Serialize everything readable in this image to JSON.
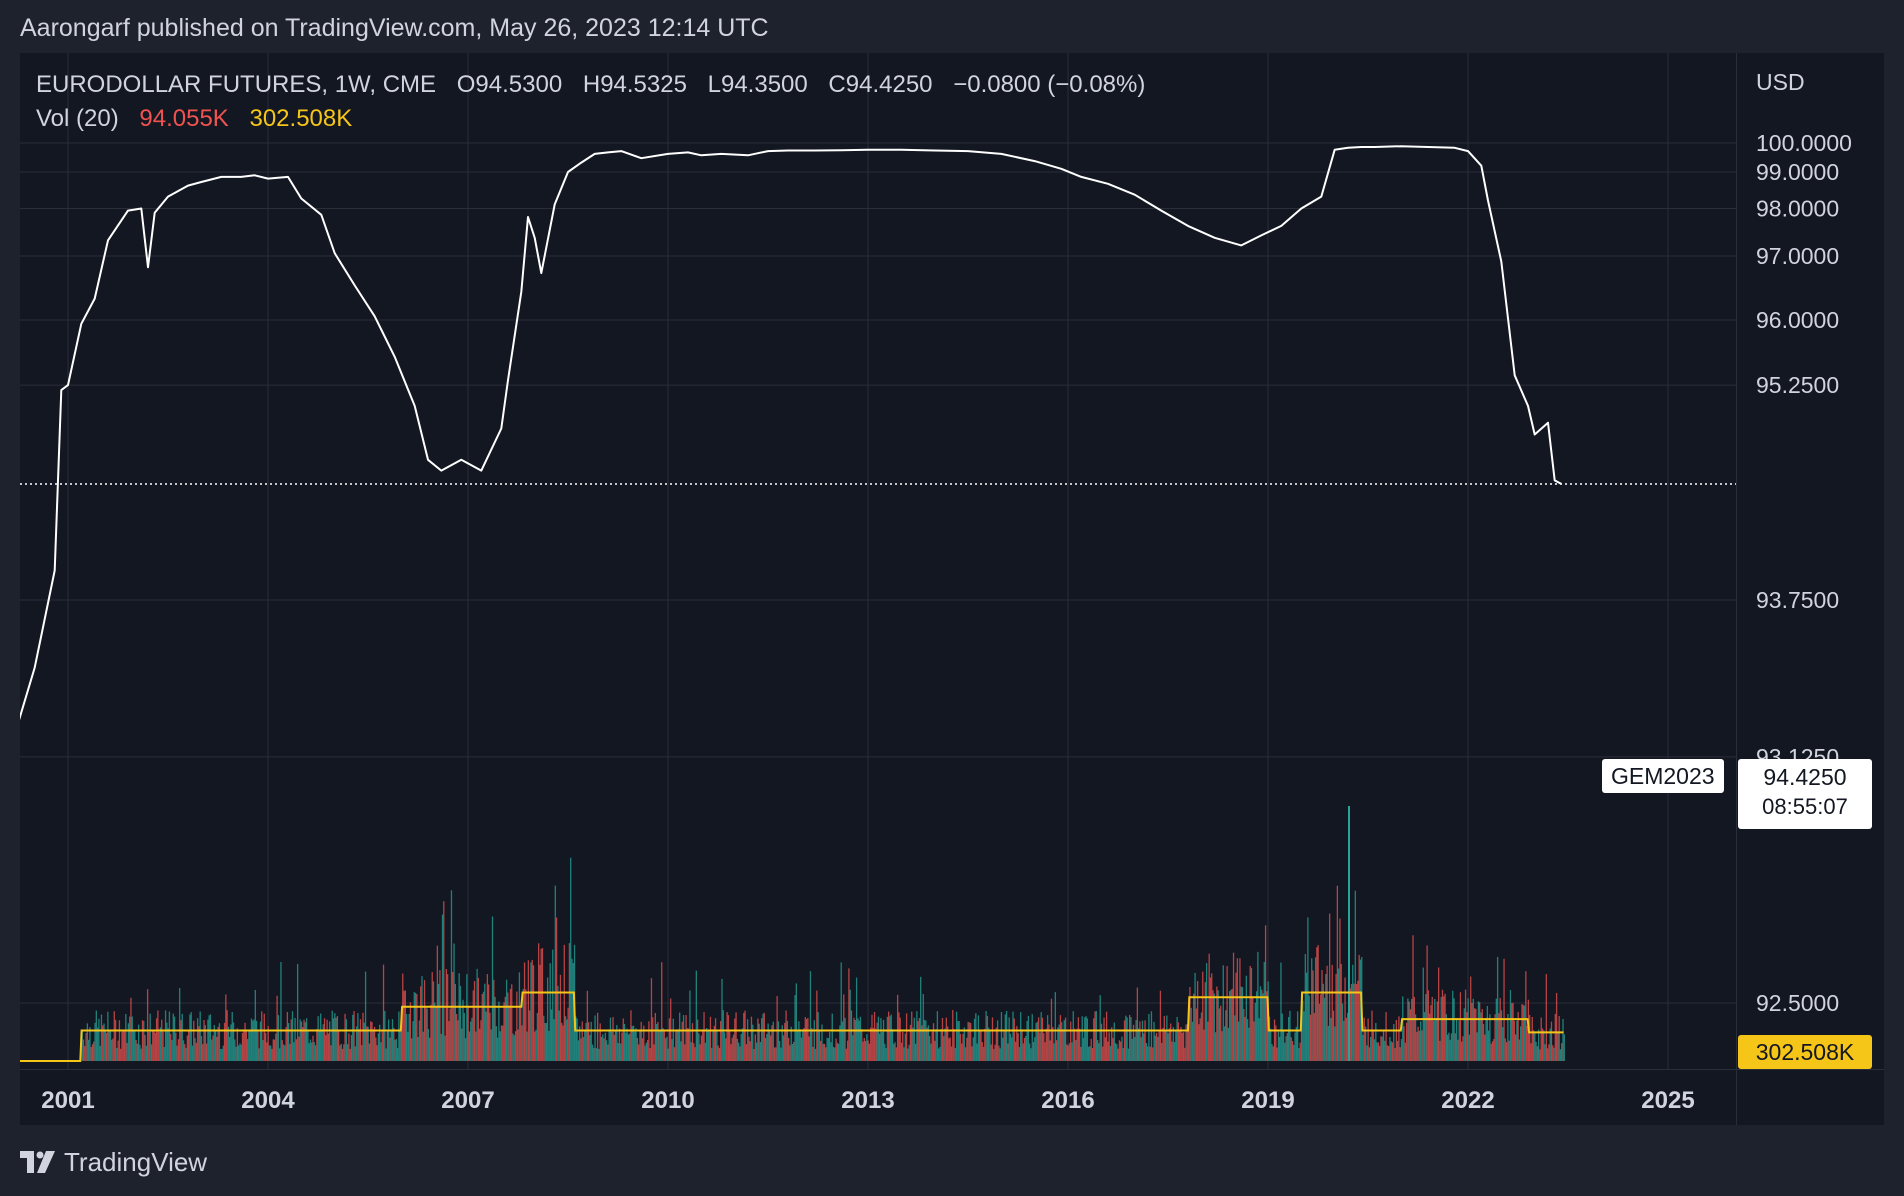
{
  "publisher_line": "Aarongarf published on TradingView.com, May 26, 2023 12:14 UTC",
  "legend": {
    "symbol": "EURODOLLAR FUTURES, 1W, CME",
    "open_label": "O",
    "open": "94.5300",
    "high_label": "H",
    "high": "94.5325",
    "low_label": "L",
    "low": "94.3500",
    "close_label": "C",
    "close": "94.4250",
    "change": "−0.0800 (−0.08%)",
    "vol_label": "Vol (20)",
    "vol_value": "94.055K",
    "vol_ma_value": "302.508K"
  },
  "currency": "USD",
  "symbol_badge": "GEM2023",
  "last_price": "94.4250",
  "countdown": "08:55:07",
  "footer_brand": "TradingView",
  "colors": {
    "background": "#131722",
    "page": "#1e222d",
    "price_line": "#ffffff",
    "vol_up": "#26a69a",
    "vol_down": "#ef5350",
    "vol_ma": "#f5c518",
    "grid": "#2a2e39"
  },
  "chart_data": {
    "type": "line",
    "x_unit": "year",
    "x_ticks": [
      "2001",
      "2004",
      "2007",
      "2010",
      "2013",
      "2016",
      "2019",
      "2022",
      "2025"
    ],
    "y_ticks": [
      "100.0000",
      "99.0000",
      "98.0000",
      "97.0000",
      "96.0000",
      "95.2500",
      "93.7500",
      "93.1250",
      "92.5000"
    ],
    "y_scale": "non-linear (reciprocal)",
    "grid": true,
    "series": [
      {
        "x": [
          2000.0,
          2000.2,
          2000.5,
          2000.8,
          2000.9,
          2001.0,
          2001.2,
          2001.4,
          2001.6,
          2001.9,
          2002.1,
          2002.2,
          2002.3,
          2002.5,
          2002.8,
          2003.0,
          2003.3,
          2003.6,
          2003.8,
          2004.0,
          2004.3,
          2004.5,
          2004.8,
          2005.0,
          2005.3,
          2005.6,
          2005.9,
          2006.2,
          2006.4,
          2006.6,
          2006.9,
          2007.2,
          2007.5,
          2007.6,
          2007.8,
          2007.9,
          2008.0,
          2008.1,
          2008.3,
          2008.5,
          2008.7,
          2008.9,
          2009.1,
          2009.3,
          2009.6,
          2010.0,
          2010.3,
          2010.5,
          2010.8,
          2011.2,
          2011.5,
          2011.8,
          2012.2,
          2012.6,
          2013.0,
          2013.5,
          2014.0,
          2014.5,
          2015.0,
          2015.5,
          2015.9,
          2016.2,
          2016.6,
          2017.0,
          2017.4,
          2017.8,
          2018.2,
          2018.6,
          2018.9,
          2019.2,
          2019.5,
          2019.8,
          2020.0,
          2020.2,
          2020.4,
          2020.6,
          2021.0,
          2021.4,
          2021.8,
          2022.0,
          2022.2,
          2022.3,
          2022.5,
          2022.7,
          2022.9,
          2023.0,
          2023.2,
          2023.3,
          2023.4
        ],
        "y": [
          92.85,
          93.2,
          93.45,
          93.9,
          95.2,
          95.25,
          95.95,
          96.3,
          97.3,
          97.95,
          98.0,
          96.8,
          97.9,
          98.3,
          98.6,
          98.7,
          98.85,
          98.85,
          98.9,
          98.8,
          98.85,
          98.25,
          97.85,
          97.05,
          96.5,
          96.05,
          95.55,
          95.05,
          94.6,
          94.52,
          94.6,
          94.52,
          94.85,
          95.3,
          96.4,
          97.8,
          97.35,
          96.7,
          98.1,
          99.0,
          99.3,
          99.6,
          99.65,
          99.7,
          99.45,
          99.6,
          99.65,
          99.55,
          99.6,
          99.55,
          99.7,
          99.72,
          99.72,
          99.73,
          99.75,
          99.75,
          99.72,
          99.7,
          99.6,
          99.35,
          99.1,
          98.85,
          98.65,
          98.35,
          97.95,
          97.6,
          97.35,
          97.2,
          97.4,
          97.6,
          98.0,
          98.3,
          99.75,
          99.82,
          99.85,
          99.85,
          99.88,
          99.85,
          99.82,
          99.7,
          99.2,
          98.2,
          96.9,
          95.35,
          95.05,
          94.8,
          94.9,
          94.45,
          94.425
        ]
      }
    ],
    "volume_peak_x": 2020.2
  }
}
